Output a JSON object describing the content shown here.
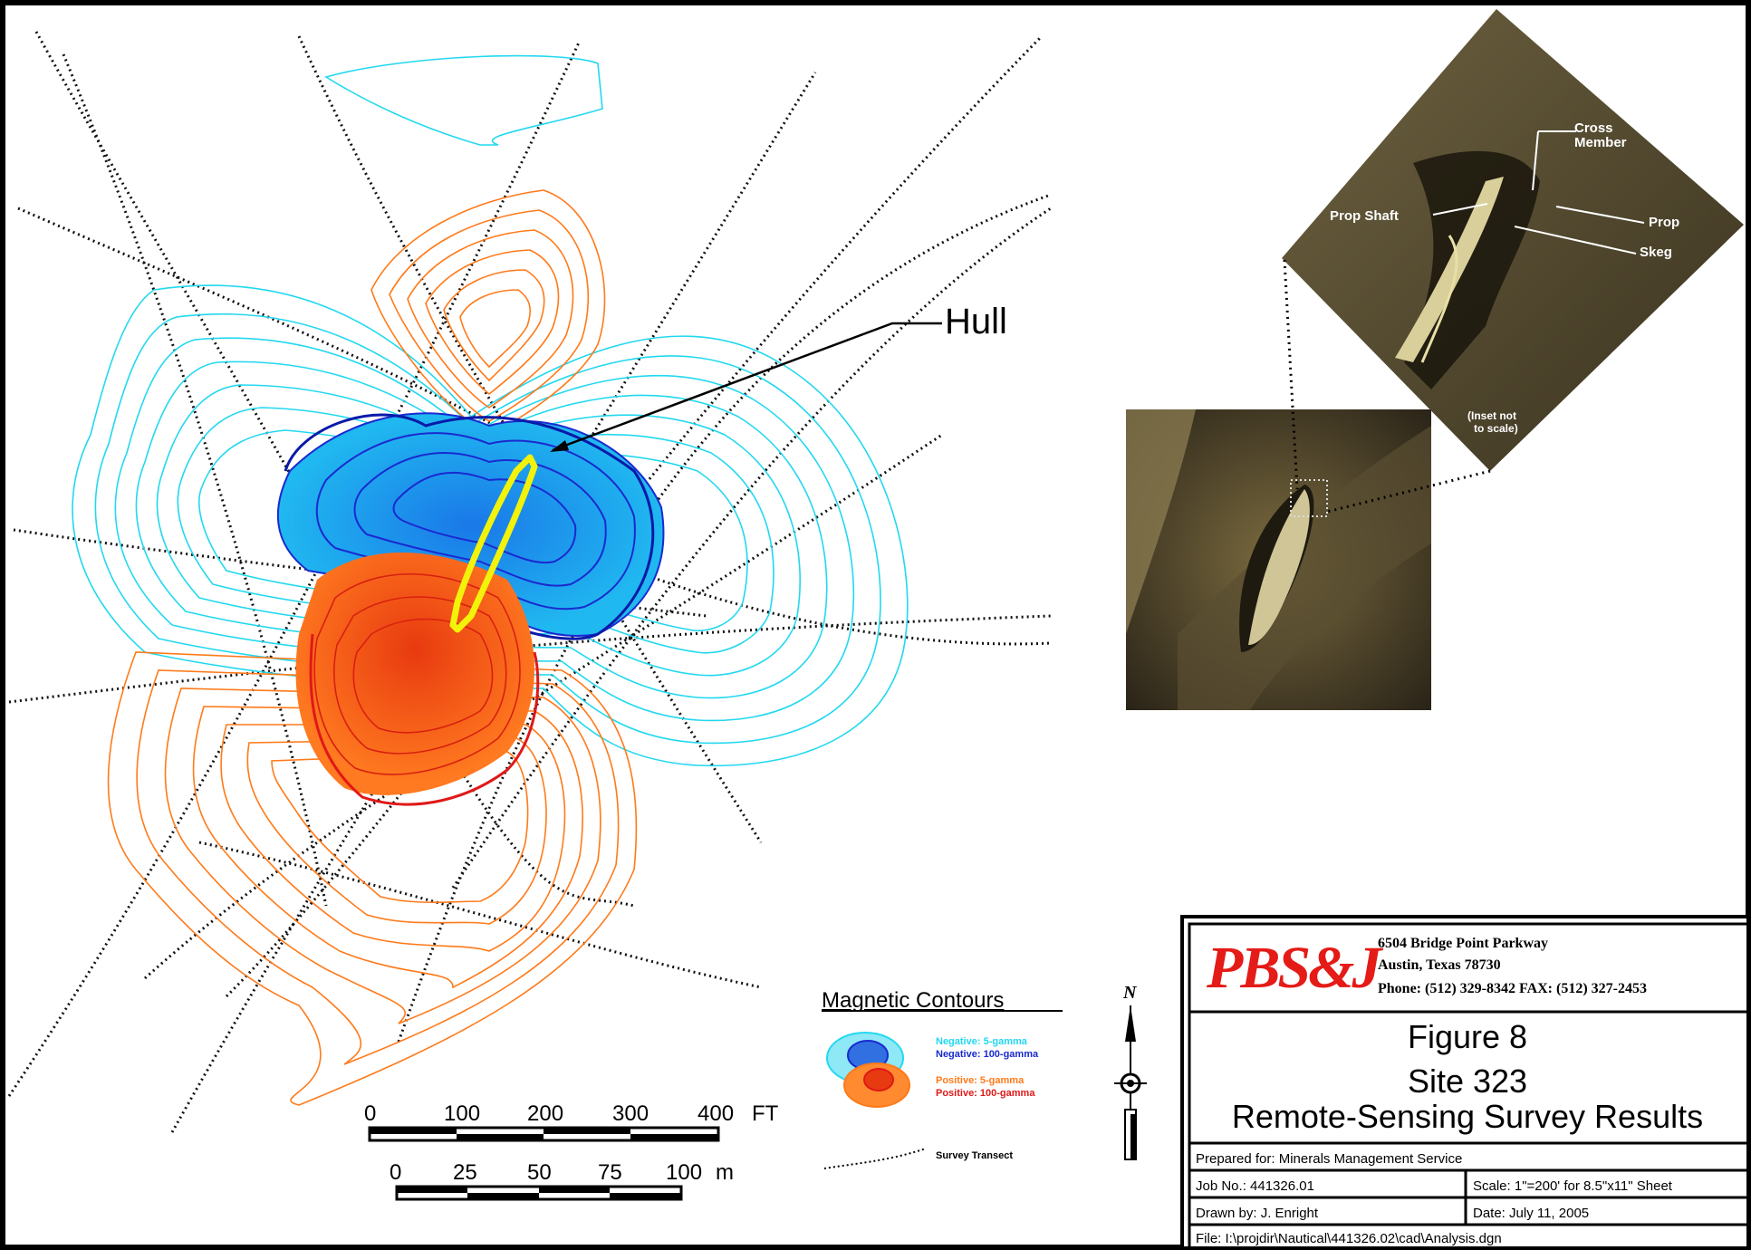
{
  "map": {
    "hull_label": "Hull",
    "inset_note_line1": "(Inset not",
    "inset_note_line2": "to scale)",
    "inset_labels": {
      "cross_member_line1": "Cross",
      "cross_member_line2": "Member",
      "prop_shaft": "Prop Shaft",
      "prop": "Prop",
      "skeg": "Skeg"
    }
  },
  "scale_bars": {
    "feet": {
      "ticks": [
        "0",
        "100",
        "200",
        "300",
        "400"
      ],
      "unit": "FT"
    },
    "meters": {
      "ticks": [
        "0",
        "25",
        "50",
        "75",
        "100"
      ],
      "unit": "m"
    }
  },
  "legend": {
    "title": "Magnetic Contours",
    "neg5": "Negative: 5-gamma",
    "neg100": "Negative: 100-gamma",
    "pos5": "Positive: 5-gamma",
    "pos100": "Positive: 100-gamma",
    "transect": "Survey Transect",
    "colors": {
      "neg5": "#22d8f0",
      "neg100": "#1a2ad0",
      "pos5": "#ff7a1a",
      "pos100": "#e01818"
    }
  },
  "north_arrow": {
    "label": "N"
  },
  "title_block": {
    "logo": "PBS&J",
    "address_line1": "6504 Bridge Point Parkway",
    "address_line2": "Austin, Texas  78730",
    "phone_line": "Phone:  (512) 329-8342    FAX:  (512) 327-2453",
    "figure": "Figure 8",
    "site": "Site 323",
    "subtitle": "Remote-Sensing Survey Results",
    "prepared_for": "Prepared for:  Minerals Management Service",
    "job_no": "Job No.:  441326.01",
    "scale": "Scale:   1\"=200'  for  8.5\"x11\"  Sheet",
    "drawn_by": "Drawn  by:  J.  Enright",
    "date": "Date:  July  11,  2005",
    "file": "File:  I:\\projdir\\Nautical\\441326.02\\cad\\Analysis.dgn"
  },
  "colors": {
    "logo_red": "#e41b17"
  }
}
